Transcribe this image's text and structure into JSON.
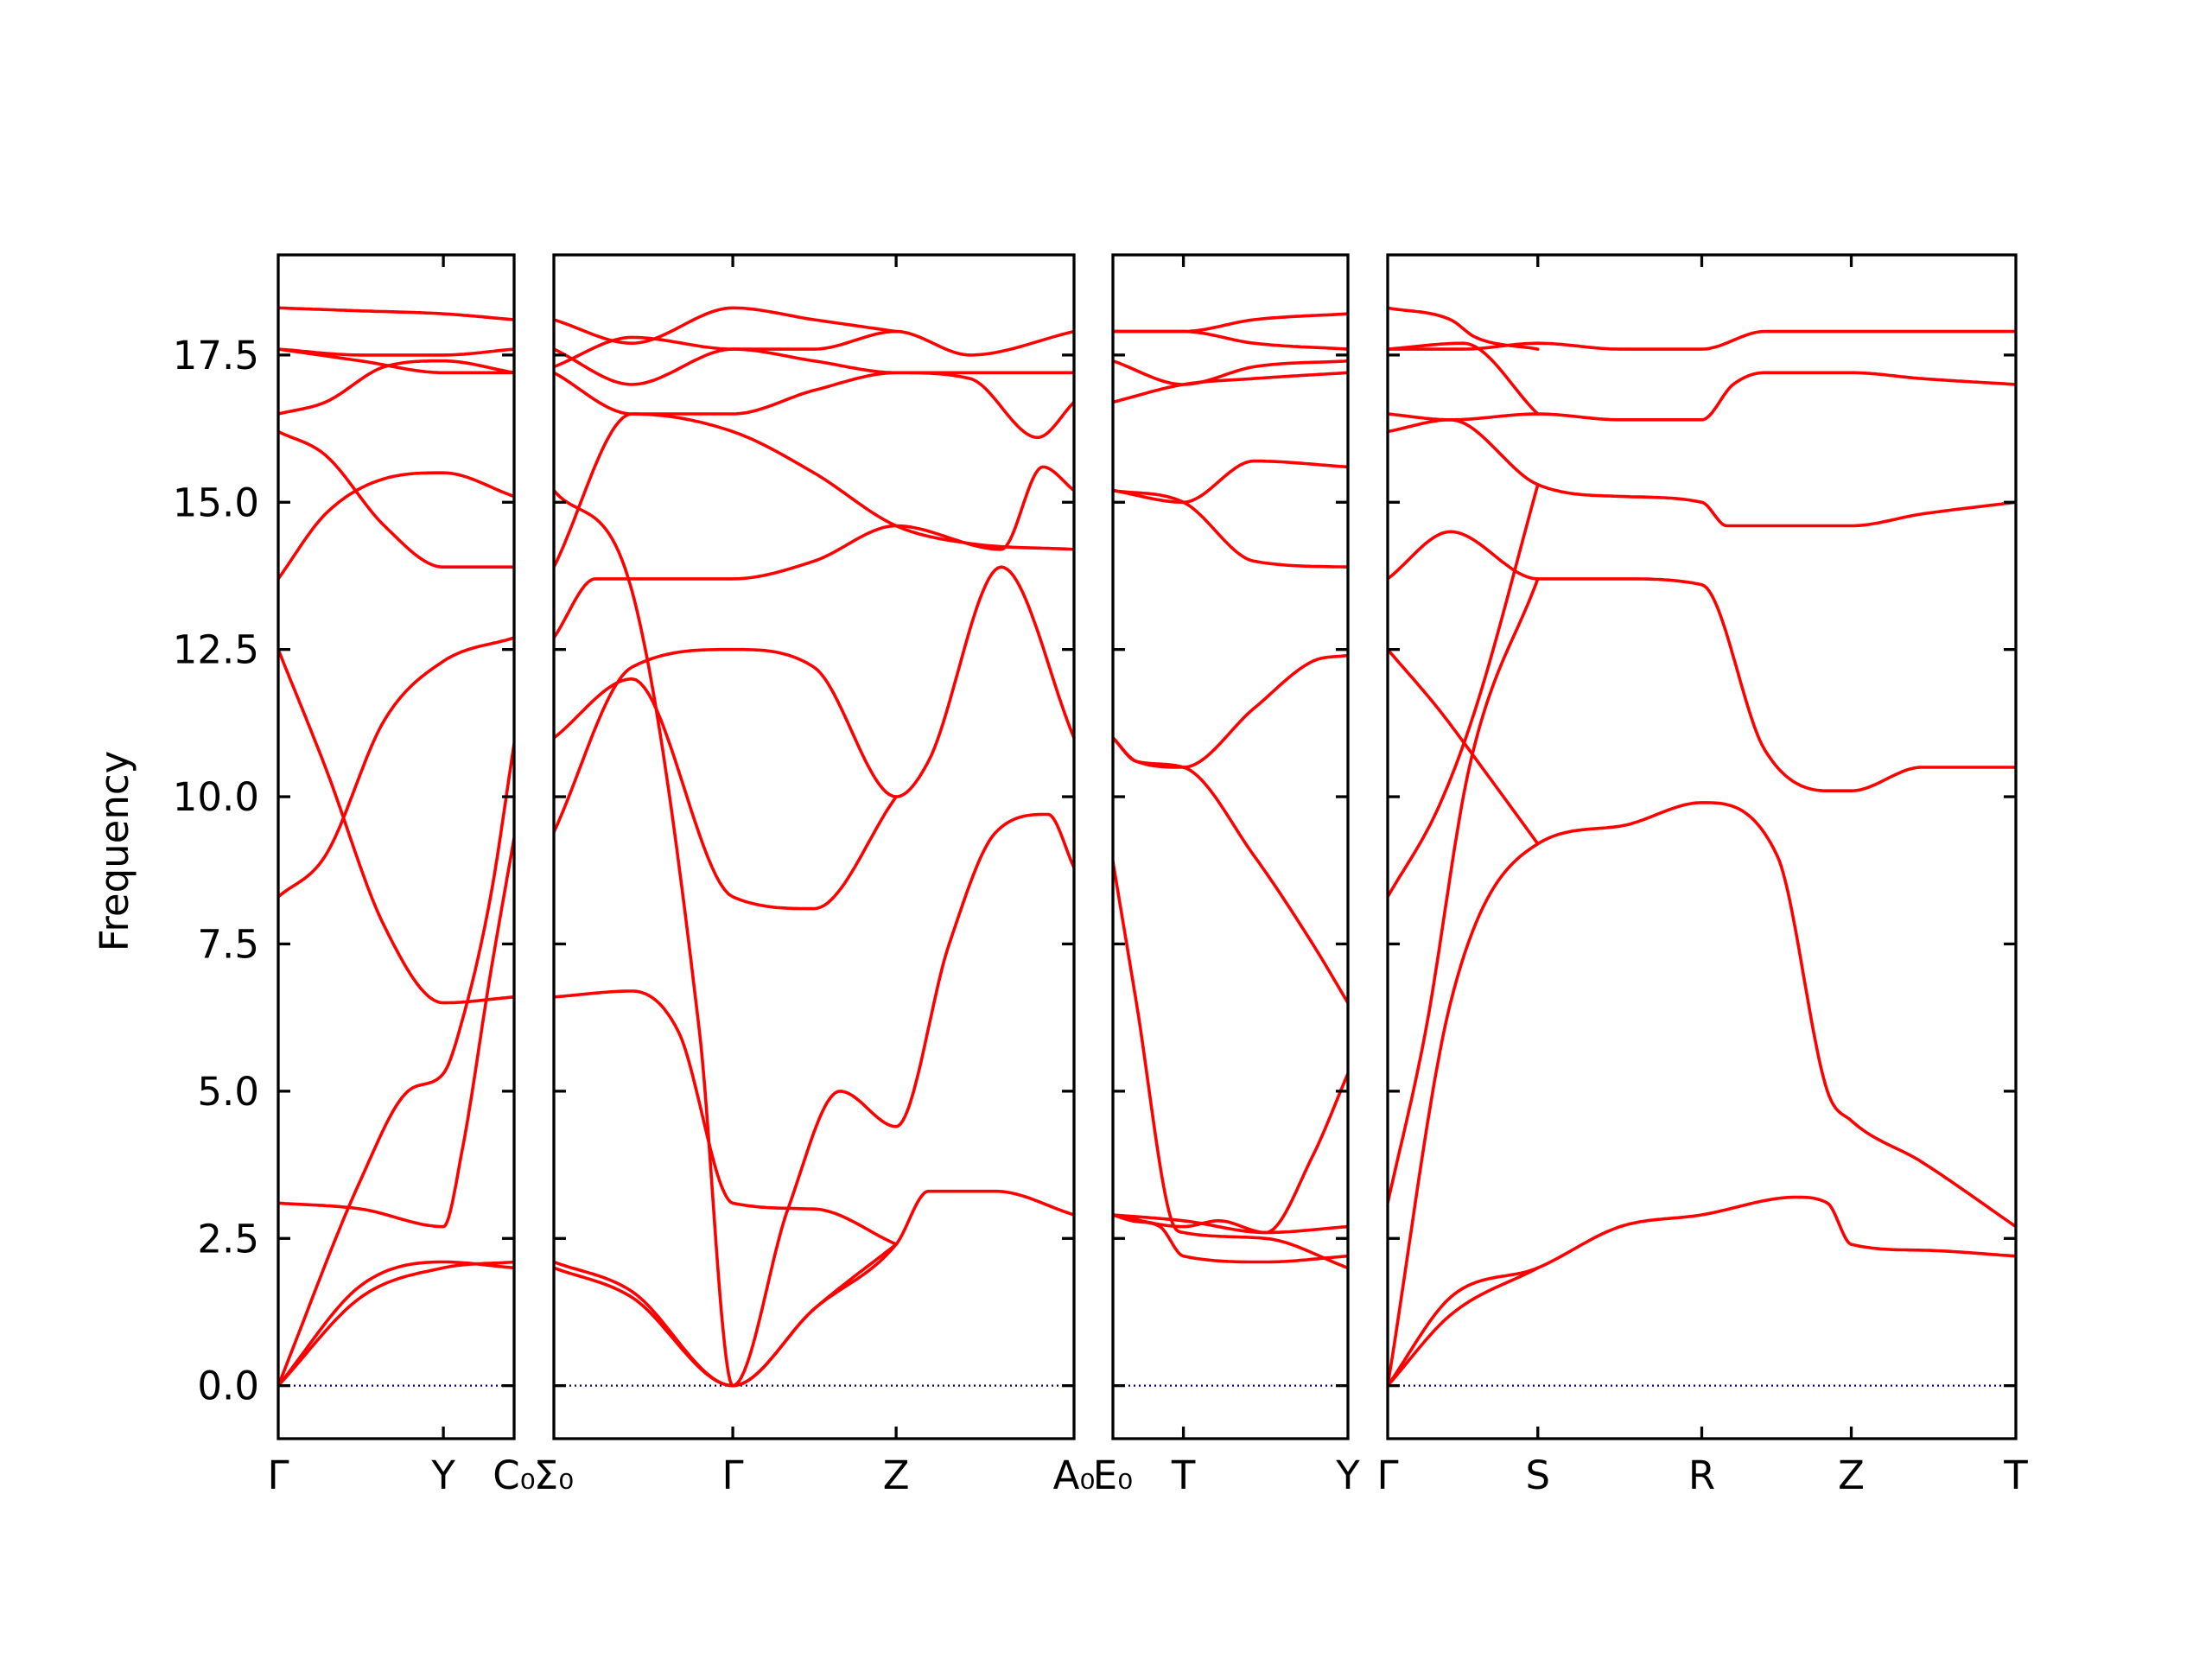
{
  "chart_data": {
    "type": "line",
    "title": "",
    "ylabel": "Frequency",
    "ylim": [
      -0.9,
      19.2
    ],
    "yticks": [
      "0.0",
      "2.5",
      "5.0",
      "7.5",
      "10.0",
      "12.5",
      "15.0",
      "17.5"
    ],
    "ytick_values": [
      0,
      2.5,
      5,
      7.5,
      10,
      12.5,
      15,
      17.5
    ],
    "grid": false,
    "colors": {
      "bands": "#ff0000",
      "zero_line": "#00008b",
      "frame": "#000000"
    },
    "panels": [
      {
        "x_labels": [
          "Γ",
          "Y",
          "C₀"
        ],
        "x": [
          0,
          0.7,
          1
        ],
        "series": [
          {
            "x": [
              0,
              0.35,
              0.7,
              1
            ],
            "values": [
              0.0,
              1.7,
              2.1,
              2.0
            ]
          },
          {
            "x": [
              0,
              0.35,
              0.7,
              1
            ],
            "values": [
              0.0,
              1.5,
              2.0,
              2.1
            ]
          },
          {
            "x": [
              0,
              0.35,
              0.55,
              0.7,
              0.78,
              0.9,
              1
            ],
            "values": [
              0.0,
              3.5,
              5.0,
              5.3,
              6.2,
              8.3,
              10.9
            ]
          },
          {
            "x": [
              0,
              0.35,
              0.7,
              0.78,
              0.9,
              1
            ],
            "values": [
              3.1,
              3.0,
              2.7,
              4.0,
              7.0,
              9.3
            ]
          },
          {
            "x": [
              0,
              0.2,
              0.45,
              0.7,
              1
            ],
            "values": [
              8.3,
              9.0,
              11.3,
              12.3,
              12.7
            ]
          },
          {
            "x": [
              0,
              0.2,
              0.45,
              0.7,
              1
            ],
            "values": [
              12.5,
              10.5,
              7.8,
              6.5,
              6.6
            ]
          },
          {
            "x": [
              0,
              0.2,
              0.45,
              0.7,
              1
            ],
            "values": [
              13.7,
              14.8,
              15.4,
              15.5,
              15.1
            ]
          },
          {
            "x": [
              0,
              0.2,
              0.45,
              0.7,
              1
            ],
            "values": [
              16.2,
              15.8,
              14.6,
              13.9,
              13.9
            ]
          },
          {
            "x": [
              0,
              0.2,
              0.45,
              0.7,
              1
            ],
            "values": [
              16.5,
              16.7,
              17.3,
              17.4,
              17.2
            ]
          },
          {
            "x": [
              0,
              0.35,
              0.7,
              1
            ],
            "values": [
              17.6,
              17.4,
              17.2,
              17.2
            ]
          },
          {
            "x": [
              0,
              0.35,
              0.7,
              1
            ],
            "values": [
              17.6,
              17.5,
              17.5,
              17.6
            ]
          },
          {
            "x": [
              0,
              0.35,
              0.7,
              1
            ],
            "values": [
              18.3,
              18.25,
              18.2,
              18.1
            ]
          }
        ]
      },
      {
        "x_labels": [
          "Σ₀",
          "Γ",
          "Z",
          "A₀"
        ],
        "x": [
          0,
          0.344,
          0.658,
          1
        ],
        "series": [
          {
            "x": [
              0,
              0.15,
              0.344,
              0.5,
              0.658,
              0.72,
              0.85,
              1
            ],
            "values": [
              2.0,
              1.5,
              0.0,
              1.3,
              2.4,
              3.3,
              3.3,
              2.9
            ]
          },
          {
            "x": [
              0,
              0.15,
              0.344,
              0.5,
              0.658
            ],
            "values": [
              2.1,
              1.6,
              0.0,
              1.3,
              2.4
            ]
          },
          {
            "x": [
              0,
              0.15,
              0.24,
              0.344,
              0.5,
              0.658
            ],
            "values": [
              6.6,
              6.7,
              6.0,
              3.1,
              3.0,
              2.4
            ]
          },
          {
            "x": [
              0,
              0.15,
              0.28,
              0.344,
              0.45,
              0.55,
              0.658,
              0.76,
              0.85,
              0.95,
              1
            ],
            "values": [
              15.2,
              13.5,
              6.0,
              0.0,
              3.0,
              5.0,
              4.4,
              7.5,
              9.4,
              9.7,
              8.8
            ]
          },
          {
            "x": [
              0,
              0.15,
              0.344,
              0.5,
              0.658,
              0.72,
              0.86,
              1
            ],
            "values": [
              9.4,
              12.2,
              12.5,
              12.2,
              10.0,
              10.6,
              13.9,
              11.0
            ]
          },
          {
            "x": [
              0,
              0.15,
              0.344,
              0.5,
              0.658
            ],
            "values": [
              11.0,
              12.0,
              8.3,
              8.1,
              10.0
            ]
          },
          {
            "x": [
              0,
              0.08,
              0.344,
              0.5,
              0.658,
              0.86,
              0.94,
              1
            ],
            "values": [
              12.7,
              13.7,
              13.7,
              14.0,
              14.6,
              14.2,
              15.6,
              15.2
            ]
          },
          {
            "x": [
              0,
              0.15,
              0.344,
              0.5,
              0.658,
              0.8,
              1
            ],
            "values": [
              13.9,
              16.5,
              16.2,
              15.5,
              14.6,
              14.3,
              14.2
            ]
          },
          {
            "x": [
              0,
              0.15,
              0.344,
              0.5,
              0.658,
              0.8,
              0.93,
              1
            ],
            "values": [
              17.2,
              16.5,
              16.5,
              16.9,
              17.2,
              17.1,
              16.1,
              16.7
            ]
          },
          {
            "x": [
              0,
              0.15,
              0.344,
              0.5,
              0.658,
              0.8,
              1
            ],
            "values": [
              17.6,
              17.0,
              17.6,
              17.4,
              17.2,
              17.2,
              17.2
            ]
          },
          {
            "x": [
              0,
              0.15,
              0.344,
              0.5,
              0.658,
              0.8,
              1
            ],
            "values": [
              17.3,
              17.8,
              17.6,
              17.6,
              17.9,
              17.5,
              17.9
            ]
          },
          {
            "x": [
              0,
              0.15,
              0.344,
              0.5,
              0.658
            ],
            "values": [
              18.1,
              17.7,
              18.3,
              18.1,
              17.9
            ]
          }
        ]
      },
      {
        "x_labels": [
          "E₀",
          "T",
          "Y"
        ],
        "x": [
          0,
          0.3,
          1
        ],
        "series": [
          {
            "x": [
              0,
              0.08,
              0.2,
              0.3,
              0.65,
              1
            ],
            "values": [
              2.9,
              2.8,
              2.7,
              2.2,
              2.1,
              2.2
            ]
          },
          {
            "x": [
              0,
              0.1,
              0.25,
              0.3,
              0.65,
              1
            ],
            "values": [
              8.9,
              6.5,
              2.8,
              2.6,
              2.5,
              2.0
            ]
          },
          {
            "x": [
              0,
              0.3,
              0.65,
              1
            ],
            "values": [
              2.9,
              2.8,
              2.6,
              2.7
            ]
          },
          {
            "x": [
              0,
              0.3,
              0.45,
              0.65,
              0.85,
              1
            ],
            "values": [
              2.9,
              2.7,
              2.8,
              2.6,
              3.9,
              5.3
            ]
          },
          {
            "x": [
              0,
              0.1,
              0.3,
              0.6,
              0.85,
              1
            ],
            "values": [
              11.0,
              10.6,
              10.5,
              9.0,
              7.5,
              6.5
            ]
          },
          {
            "x": [
              0,
              0.1,
              0.3,
              0.6,
              0.85,
              1
            ],
            "values": [
              11.0,
              10.6,
              10.5,
              11.5,
              12.3,
              12.4
            ]
          },
          {
            "x": [
              0,
              0.3,
              0.6,
              1
            ],
            "values": [
              15.2,
              15.0,
              14.0,
              13.9
            ]
          },
          {
            "x": [
              0,
              0.3,
              0.6,
              1
            ],
            "values": [
              15.2,
              15.0,
              15.7,
              15.6
            ]
          },
          {
            "x": [
              0,
              0.3,
              0.6,
              1
            ],
            "values": [
              16.7,
              17.0,
              17.1,
              17.2
            ]
          },
          {
            "x": [
              0,
              0.3,
              0.6,
              1
            ],
            "values": [
              17.4,
              17.0,
              17.3,
              17.4
            ]
          },
          {
            "x": [
              0,
              0.3,
              0.6,
              1
            ],
            "values": [
              17.9,
              17.9,
              17.7,
              17.6
            ]
          },
          {
            "x": [
              0,
              0.3,
              0.6,
              1
            ],
            "values": [
              17.9,
              17.9,
              18.1,
              18.2
            ]
          }
        ]
      },
      {
        "x_labels": [
          "Γ",
          "S",
          "R",
          "Z",
          "T"
        ],
        "x": [
          0,
          0.239,
          0.5,
          0.738,
          1
        ],
        "series": [
          {
            "x": [
              0,
              0.1,
              0.239,
              0.37,
              0.5,
              0.65,
              0.7,
              0.738,
              0.85,
              1
            ],
            "values": [
              0.0,
              1.5,
              2.0,
              2.7,
              2.9,
              3.2,
              3.1,
              2.4,
              2.3,
              2.2
            ]
          },
          {
            "x": [
              0,
              0.1,
              0.239
            ],
            "values": [
              0.0,
              1.2,
              2.0
            ]
          },
          {
            "x": [
              0,
              0.1,
              0.239,
              0.37,
              0.5,
              0.62,
              0.7,
              0.738,
              0.85,
              1
            ],
            "values": [
              0.0,
              6.5,
              9.2,
              9.5,
              9.9,
              9.0,
              5.0,
              4.5,
              3.8,
              2.7
            ]
          },
          {
            "x": [
              0,
              0.06,
              0.13,
              0.239
            ],
            "values": [
              3.1,
              6.0,
              10.5,
              13.7
            ]
          },
          {
            "x": [
              0,
              0.08,
              0.14,
              0.239
            ],
            "values": [
              8.3,
              9.8,
              11.5,
              15.3
            ]
          },
          {
            "x": [
              0,
              0.08,
              0.15,
              0.239
            ],
            "values": [
              12.5,
              11.5,
              10.5,
              9.2
            ]
          },
          {
            "x": [
              0,
              0.1,
              0.239,
              0.37,
              0.5,
              0.6,
              0.7,
              0.738,
              0.85,
              1
            ],
            "values": [
              13.7,
              14.5,
              13.7,
              13.7,
              13.6,
              10.8,
              10.1,
              10.1,
              10.5,
              10.5
            ]
          },
          {
            "x": [
              0,
              0.1,
              0.239,
              0.37,
              0.5,
              0.54,
              0.6,
              0.738,
              0.85,
              1
            ],
            "values": [
              16.2,
              16.4,
              15.3,
              15.1,
              15.0,
              14.6,
              14.6,
              14.6,
              14.8,
              15.0
            ]
          },
          {
            "x": [
              0,
              0.1,
              0.239,
              0.37,
              0.5,
              0.55,
              0.6,
              0.738,
              0.85,
              1
            ],
            "values": [
              16.5,
              16.4,
              16.5,
              16.4,
              16.4,
              17.0,
              17.2,
              17.2,
              17.1,
              17.0
            ]
          },
          {
            "x": [
              0,
              0.12,
              0.239
            ],
            "values": [
              17.6,
              17.7,
              16.5
            ]
          },
          {
            "x": [
              0,
              0.12,
              0.239,
              0.37,
              0.5,
              0.6,
              0.738,
              0.85,
              1
            ],
            "values": [
              17.6,
              17.6,
              17.7,
              17.6,
              17.6,
              17.9,
              17.9,
              17.9,
              17.9
            ]
          },
          {
            "x": [
              0,
              0.1,
              0.14,
              0.239
            ],
            "values": [
              18.3,
              18.1,
              17.8,
              17.6
            ]
          }
        ]
      }
    ]
  }
}
